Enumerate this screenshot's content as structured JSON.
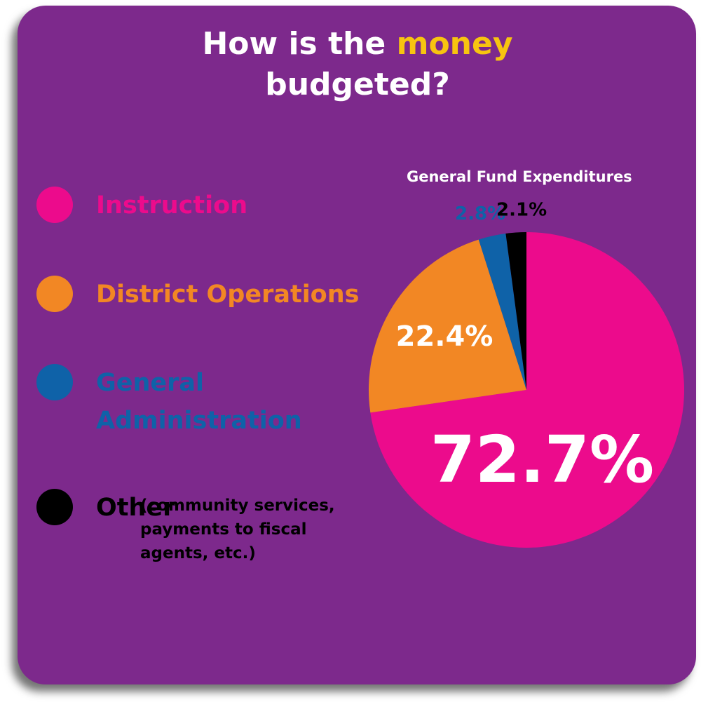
{
  "title": {
    "part1": "How is the ",
    "highlight": "money",
    "part2": "budgeted?"
  },
  "legend": [
    {
      "label": "Instruction",
      "color": "#ec0b8c"
    },
    {
      "label": "District Operations",
      "color": "#f28724"
    },
    {
      "label": "General Administration",
      "line1": "General",
      "line2": "Administration",
      "color": "#0f62a8"
    },
    {
      "label": "Other",
      "color": "#000000",
      "note": "(community services, payments to fiscal agents, etc.)"
    }
  ],
  "colors": {
    "background": "#7d298c",
    "title_highlight": "#f7c410"
  },
  "chart_data": {
    "type": "pie",
    "title": "General Fund Expenditures",
    "slices": [
      {
        "label": "Instruction",
        "value": 72.7,
        "display": "72.7%",
        "color": "#ec0b8c"
      },
      {
        "label": "District Operations",
        "value": 22.4,
        "display": "22.4%",
        "color": "#f28724"
      },
      {
        "label": "General Administration",
        "value": 2.8,
        "display": "2.8%",
        "color": "#0f62a8"
      },
      {
        "label": "Other",
        "value": 2.1,
        "display": "2.1%",
        "color": "#000000"
      }
    ]
  }
}
